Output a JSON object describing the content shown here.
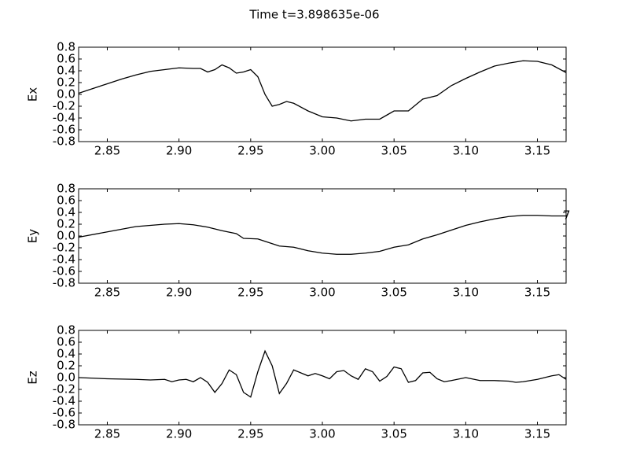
{
  "title": "Time t=3.898635e-06",
  "chart_data": [
    {
      "type": "line",
      "ylabel": "Ex",
      "color": "#000000",
      "x": [
        2.83,
        2.84,
        2.85,
        2.86,
        2.87,
        2.88,
        2.89,
        2.9,
        2.91,
        2.915,
        2.92,
        2.925,
        2.93,
        2.935,
        2.94,
        2.945,
        2.95,
        2.955,
        2.96,
        2.965,
        2.97,
        2.975,
        2.98,
        2.99,
        3.0,
        3.01,
        3.02,
        3.03,
        3.04,
        3.045,
        3.05,
        3.06,
        3.07,
        3.08,
        3.09,
        3.1,
        3.11,
        3.12,
        3.13,
        3.14,
        3.15,
        3.16,
        3.17
      ],
      "values": [
        0.02,
        0.1,
        0.18,
        0.26,
        0.33,
        0.39,
        0.42,
        0.45,
        0.44,
        0.44,
        0.38,
        0.42,
        0.5,
        0.45,
        0.36,
        0.38,
        0.42,
        0.3,
        0.0,
        -0.2,
        -0.17,
        -0.12,
        -0.15,
        -0.28,
        -0.38,
        -0.4,
        -0.45,
        -0.42,
        -0.42,
        -0.35,
        -0.28,
        -0.28,
        -0.08,
        -0.02,
        0.15,
        0.27,
        0.38,
        0.48,
        0.53,
        0.57,
        0.56,
        0.5,
        0.37
      ],
      "xlim": [
        2.83,
        3.17
      ],
      "xticks": [
        2.85,
        {
          "value": 2.9,
          "label": "2.90"
        },
        2.95,
        {
          "value": 3.0,
          "label": "3.00"
        },
        3.05,
        {
          "value": 3.1,
          "label": "3.10"
        },
        3.15
      ],
      "ylim": [
        -0.8,
        0.8
      ],
      "yticks": [
        -0.8,
        -0.6,
        -0.4,
        -0.2,
        {
          "value": 0,
          "label": "0.0"
        },
        0.2,
        0.4,
        0.6,
        0.8
      ]
    },
    {
      "type": "line",
      "ylabel": "Ey",
      "color": "#000000",
      "annotation": "7",
      "x": [
        2.83,
        2.85,
        2.87,
        2.89,
        2.9,
        2.91,
        2.92,
        2.93,
        2.94,
        2.945,
        2.955,
        2.96,
        2.97,
        2.98,
        2.99,
        3.0,
        3.01,
        3.02,
        3.03,
        3.04,
        3.05,
        3.06,
        3.07,
        3.08,
        3.09,
        3.1,
        3.11,
        3.12,
        3.13,
        3.14,
        3.15,
        3.16,
        3.17
      ],
      "values": [
        -0.02,
        0.07,
        0.16,
        0.2,
        0.21,
        0.19,
        0.15,
        0.09,
        0.04,
        -0.04,
        -0.05,
        -0.09,
        -0.17,
        -0.19,
        -0.25,
        -0.29,
        -0.31,
        -0.31,
        -0.29,
        -0.26,
        -0.19,
        -0.15,
        -0.05,
        0.02,
        0.1,
        0.18,
        0.24,
        0.29,
        0.33,
        0.35,
        0.35,
        0.34,
        0.34
      ],
      "xlim": [
        2.83,
        3.17
      ],
      "xticks": [
        2.85,
        {
          "value": 2.9,
          "label": "2.90"
        },
        2.95,
        {
          "value": 3.0,
          "label": "3.00"
        },
        3.05,
        {
          "value": 3.1,
          "label": "3.10"
        },
        3.15
      ],
      "ylim": [
        -0.8,
        0.8
      ],
      "yticks": [
        -0.8,
        -0.6,
        -0.4,
        -0.2,
        {
          "value": 0,
          "label": "0.0"
        },
        0.2,
        0.4,
        0.6,
        0.8
      ]
    },
    {
      "type": "line",
      "ylabel": "Ez",
      "color": "#000000",
      "x": [
        2.83,
        2.85,
        2.87,
        2.88,
        2.89,
        2.895,
        2.9,
        2.905,
        2.91,
        2.915,
        2.92,
        2.925,
        2.93,
        2.935,
        2.94,
        2.945,
        2.95,
        2.955,
        2.96,
        2.965,
        2.97,
        2.975,
        2.98,
        2.985,
        2.99,
        2.995,
        3.0,
        3.005,
        3.01,
        3.015,
        3.02,
        3.025,
        3.03,
        3.035,
        3.04,
        3.045,
        3.05,
        3.055,
        3.06,
        3.065,
        3.07,
        3.075,
        3.08,
        3.085,
        3.09,
        3.1,
        3.11,
        3.12,
        3.13,
        3.135,
        3.14,
        3.15,
        3.16,
        3.165,
        3.17
      ],
      "values": [
        0.0,
        -0.02,
        -0.03,
        -0.04,
        -0.03,
        -0.07,
        -0.04,
        -0.03,
        -0.07,
        0.0,
        -0.08,
        -0.25,
        -0.1,
        0.13,
        0.05,
        -0.25,
        -0.33,
        0.1,
        0.45,
        0.2,
        -0.27,
        -0.1,
        0.13,
        0.08,
        0.03,
        0.07,
        0.03,
        -0.02,
        0.1,
        0.12,
        0.03,
        -0.03,
        0.15,
        0.1,
        -0.06,
        0.02,
        0.18,
        0.15,
        -0.08,
        -0.05,
        0.08,
        0.09,
        -0.02,
        -0.07,
        -0.05,
        0.0,
        -0.05,
        -0.05,
        -0.06,
        -0.08,
        -0.07,
        -0.03,
        0.03,
        0.05,
        -0.03
      ],
      "xlim": [
        2.83,
        3.17
      ],
      "xticks": [
        2.85,
        {
          "value": 2.9,
          "label": "2.90"
        },
        2.95,
        {
          "value": 3.0,
          "label": "3.00"
        },
        3.05,
        {
          "value": 3.1,
          "label": "3.10"
        },
        3.15
      ],
      "ylim": [
        -0.8,
        0.8
      ],
      "yticks": [
        -0.8,
        -0.6,
        -0.4,
        -0.2,
        {
          "value": 0,
          "label": "0.0"
        },
        0.2,
        0.4,
        0.6,
        0.8
      ]
    }
  ]
}
